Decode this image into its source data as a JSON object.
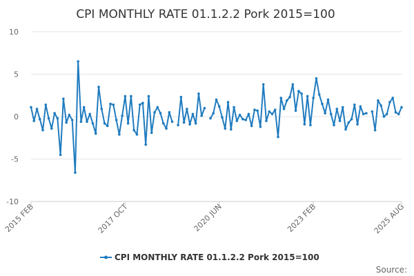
{
  "chart_data": {
    "type": "line",
    "title": "CPI MONTHLY RATE 01.1.2.2 Pork 2015=100",
    "xlabel": "",
    "ylabel": "",
    "ylim": [
      -10,
      10
    ],
    "y_ticks": [
      10,
      5,
      0,
      -5,
      -10
    ],
    "x_tick_labels": [
      "2015 FEB",
      "2017 OCT",
      "2020 JUN",
      "2023 FEB",
      "2025 AUG"
    ],
    "grid": true,
    "legend_position": "bottom-center",
    "source_label": "Source:",
    "series": [
      {
        "name": "CPI MONTHLY RATE 01.1.2.2 Pork 2015=100",
        "color": "#1f7bbf",
        "values": [
          1.1,
          -0.5,
          0.9,
          -0.3,
          -1.6,
          1.4,
          -0.2,
          -1.4,
          0.4,
          -0.2,
          -4.5,
          2.1,
          -0.7,
          0.2,
          -0.4,
          -6.6,
          6.5,
          -0.6,
          1.1,
          -0.6,
          0.3,
          -0.8,
          -2.0,
          3.5,
          0.9,
          -0.8,
          -1.1,
          1.5,
          1.4,
          -0.4,
          -2.1,
          0.1,
          2.4,
          -0.8,
          2.4,
          -1.6,
          -2.1,
          1.4,
          1.6,
          -3.3,
          2.4,
          -1.9,
          0.5,
          1.1,
          0.4,
          -0.8,
          -1.4,
          0.5,
          -0.6,
          null,
          -1.0,
          2.3,
          -0.7,
          0.9,
          -0.9,
          0.3,
          -0.8,
          2.7,
          0.1,
          1.0,
          null,
          -0.2,
          0.4,
          2.0,
          1.2,
          -0.1,
          -1.4,
          1.7,
          -1.5,
          1.1,
          -0.5,
          0.2,
          -0.3,
          -0.4,
          0.3,
          -1.1,
          0.8,
          0.7,
          -1.2,
          3.8,
          -0.5,
          0.6,
          0.3,
          0.8,
          -2.4,
          2.2,
          0.9,
          1.9,
          2.3,
          3.8,
          0.7,
          3.0,
          2.7,
          -0.9,
          2.4,
          -1.0,
          2.2,
          4.5,
          2.6,
          1.5,
          0.4,
          2.0,
          0.3,
          -1.0,
          0.9,
          -0.5,
          1.1,
          -1.5,
          -0.7,
          -0.3,
          1.4,
          -0.9,
          1.2,
          0.3,
          0.4,
          null,
          0.6,
          -1.6,
          1.9,
          1.3,
          0.0,
          0.3,
          1.7,
          2.2,
          0.5,
          0.3,
          1.1
        ]
      }
    ]
  }
}
